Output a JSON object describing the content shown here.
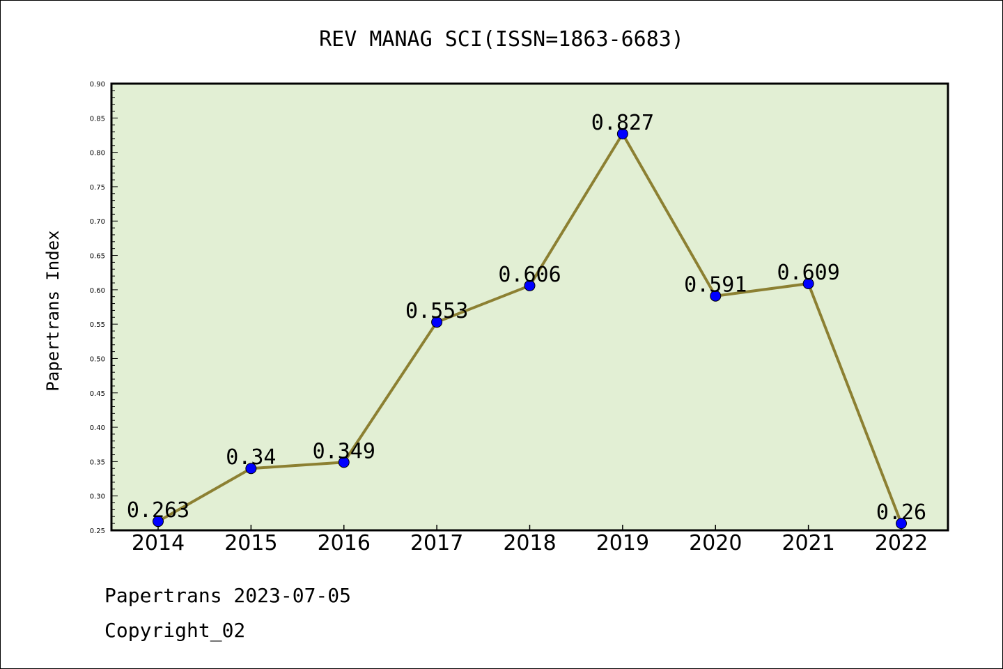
{
  "chart_data": {
    "type": "line",
    "title": "REV MANAG SCI(ISSN=1863-6683)",
    "ylabel": "Papertrans Index",
    "xlabel": "",
    "categories": [
      "2014",
      "2015",
      "2016",
      "2017",
      "2018",
      "2019",
      "2020",
      "2021",
      "2022"
    ],
    "series": [
      {
        "values": [
          0.263,
          0.34,
          0.349,
          0.553,
          0.606,
          0.827,
          0.591,
          0.609,
          0.26
        ]
      }
    ],
    "data_labels": [
      "0.263",
      "0.34",
      "0.349",
      "0.553",
      "0.606",
      "0.827",
      "0.591",
      "0.609",
      "0.26"
    ],
    "ylim": [
      0.25,
      0.9
    ],
    "y_ticks": [
      "0.25",
      "0.30",
      "0.35",
      "0.40",
      "0.45",
      "0.50",
      "0.55",
      "0.60",
      "0.65",
      "0.70",
      "0.75",
      "0.80",
      "0.85",
      "0.90"
    ],
    "grid": false,
    "colors": {
      "line": "#8c8032",
      "marker": "#0000ff",
      "plot_background": "#e2efd4"
    }
  },
  "footer": {
    "line1": "Papertrans 2023-07-05",
    "line2": "Copyright_02"
  }
}
